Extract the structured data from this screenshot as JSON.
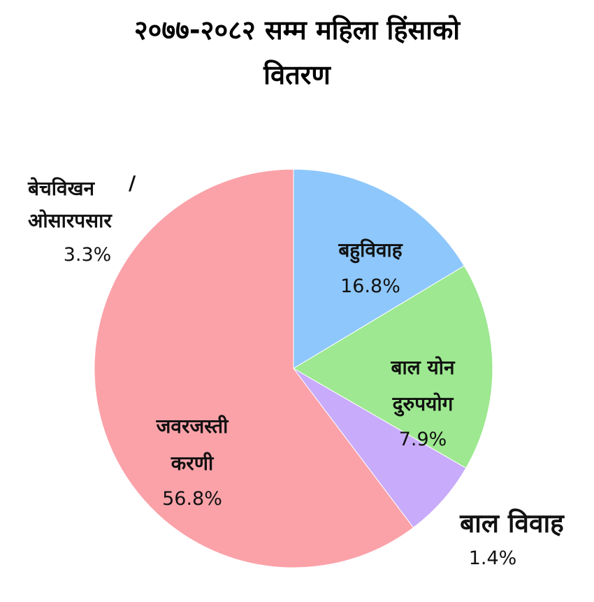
{
  "chart_data": {
    "type": "pie",
    "title_lines": [
      "२०७७-२०८२ सम्म महिला हिंसाको",
      "वितरण"
    ],
    "slices": [
      {
        "label_lines": [
          "बहुविवाह"
        ],
        "percent_text": "16.8%",
        "value": 16.8,
        "color": "#8ec7fb"
      },
      {
        "label_lines": [
          "बाल योन",
          "दुरुपयोग"
        ],
        "percent_text": "7.9%",
        "value": 7.9,
        "color": "#9de890"
      },
      {
        "label_lines": [
          "बाल विवाह"
        ],
        "percent_text": "1.4%",
        "value": 1.4,
        "color": "#c8abfa"
      },
      {
        "label_lines": [
          "जवरजस्ती",
          "करणी"
        ],
        "percent_text": "56.8%",
        "value": 56.8,
        "color": "#fba2a9"
      },
      {
        "label_lines": [
          "बेचविखन",
          "ओसारपसार"
        ],
        "label_separator": "/",
        "percent_text": "3.3%",
        "value": 3.3,
        "color": "#fba2a9"
      }
    ]
  }
}
